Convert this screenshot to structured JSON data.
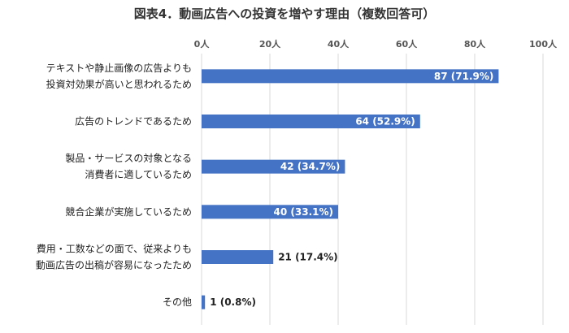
{
  "chart_data": {
    "type": "bar",
    "orientation": "horizontal",
    "title": "図表4．動画広告への投資を増やす理由（複数回答可）",
    "categories": [
      [
        "テキストや静止画像の広告よりも",
        "投資対効果が高いと思われるため"
      ],
      [
        "広告のトレンドであるため"
      ],
      [
        "製品・サービスの対象となる",
        "消費者に適しているため"
      ],
      [
        "競合企業が実施しているため"
      ],
      [
        "費用・工数などの面で、従来よりも",
        "動画広告の出稿が容易になったため"
      ],
      [
        "その他"
      ]
    ],
    "values": [
      87,
      64,
      42,
      40,
      21,
      1
    ],
    "percents": [
      "71.9%",
      "52.9%",
      "34.7%",
      "33.1%",
      "17.4%",
      "0.8%"
    ],
    "data_labels": [
      "87 (71.9%)",
      "64 (52.9%)",
      "42 (34.7%)",
      "40 (33.1%)",
      "21 (17.4%)",
      "1 (0.8%)"
    ],
    "xlim": [
      0,
      100
    ],
    "xticks": [
      0,
      20,
      40,
      60,
      80,
      100
    ],
    "xtick_labels": [
      "0人",
      "20人",
      "40人",
      "60人",
      "80人",
      "100人"
    ],
    "grid": true,
    "legend": "none",
    "bar_color": "#4472C4",
    "grid_color": "#D9D9D9"
  }
}
